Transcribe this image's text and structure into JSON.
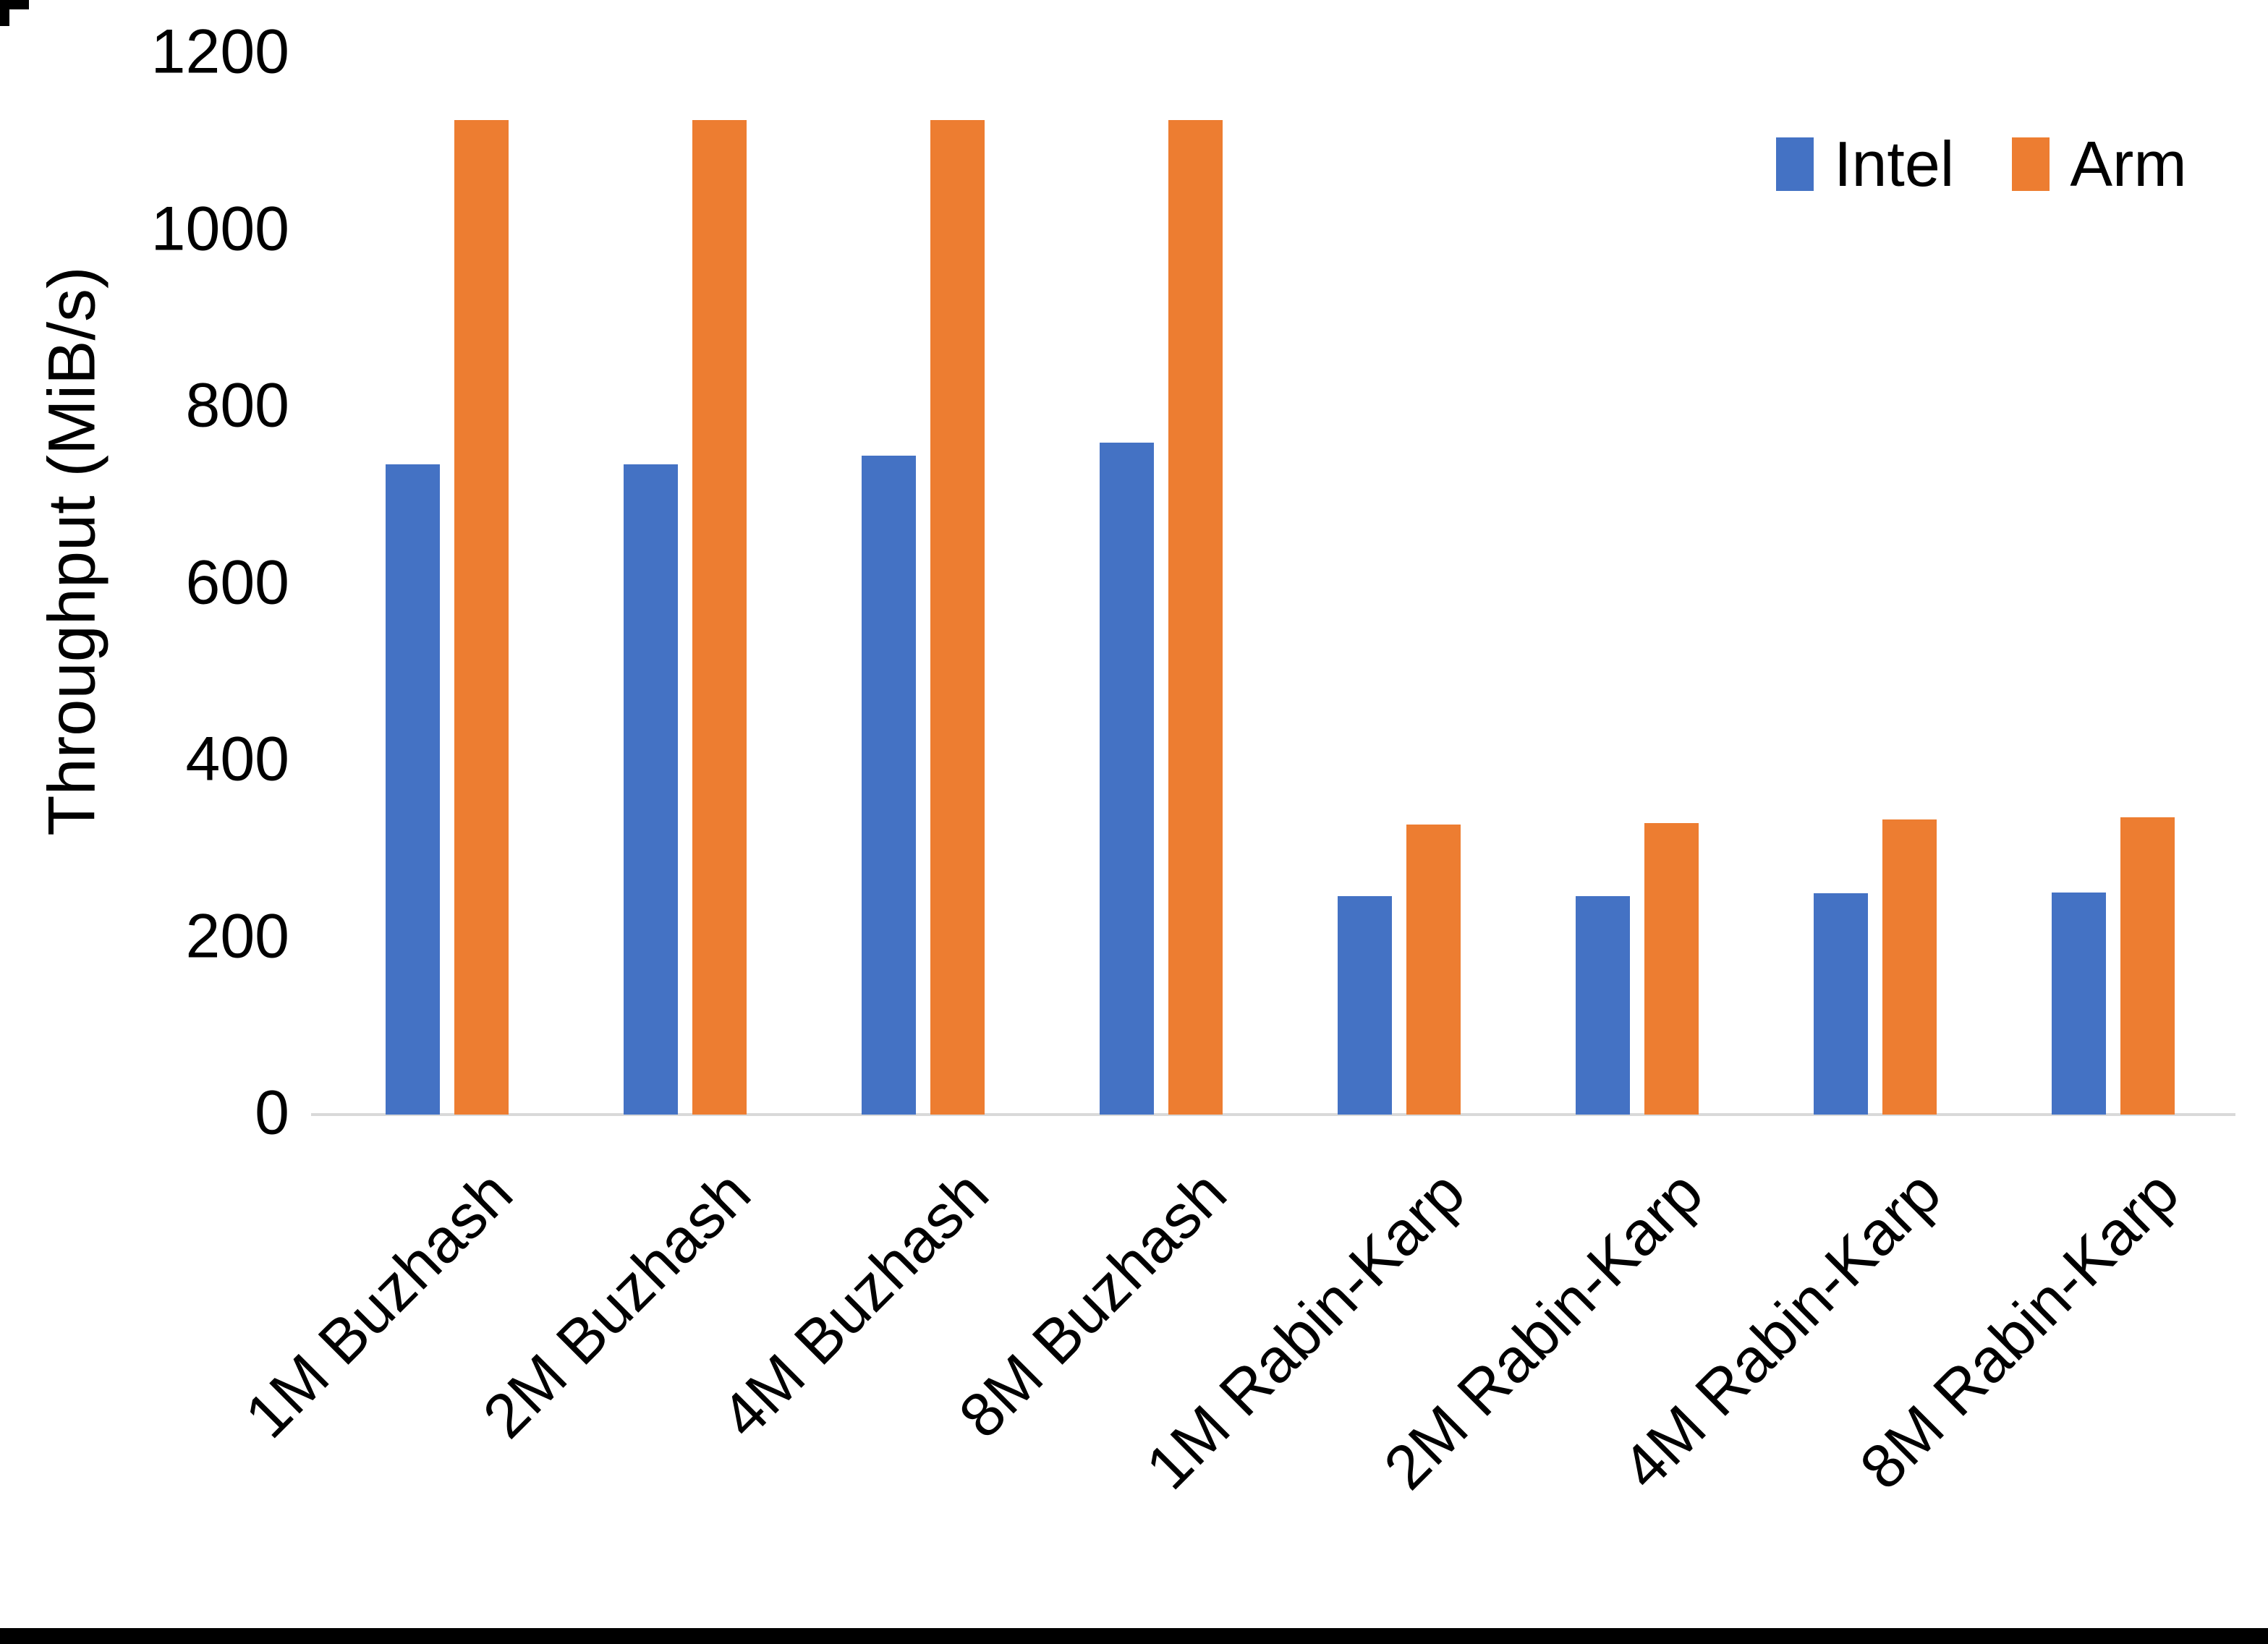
{
  "figure": {
    "background": "#FFFFFF",
    "bottom_border_color": "#000000"
  },
  "chart_data": {
    "type": "bar",
    "title": "",
    "ylabel": "Throughput (MiB/s)",
    "xlabel": "",
    "ylim": [
      0,
      1200
    ],
    "yticks": [
      1200,
      1000,
      800,
      600,
      400,
      200,
      0
    ],
    "grid": false,
    "legend_position": "top-right",
    "axis_line_color": "#D9D9D9",
    "text_color": "#000000",
    "categories": [
      "1M Buzhash",
      "2M Buzhash",
      "4M Buzhash",
      "8M Buzhash",
      "1M Rabin-Karp",
      "2M Rabin-Karp",
      "4M Rabin-Karp",
      "8M Rabin-Karp"
    ],
    "series": [
      {
        "name": "Intel",
        "color": "#4472C4",
        "values": [
          735,
          735,
          745,
          760,
          247,
          247,
          250,
          251
        ]
      },
      {
        "name": "Arm",
        "color": "#ED7D31",
        "values": [
          1125,
          1125,
          1125,
          1125,
          328,
          330,
          334,
          336
        ]
      }
    ]
  }
}
